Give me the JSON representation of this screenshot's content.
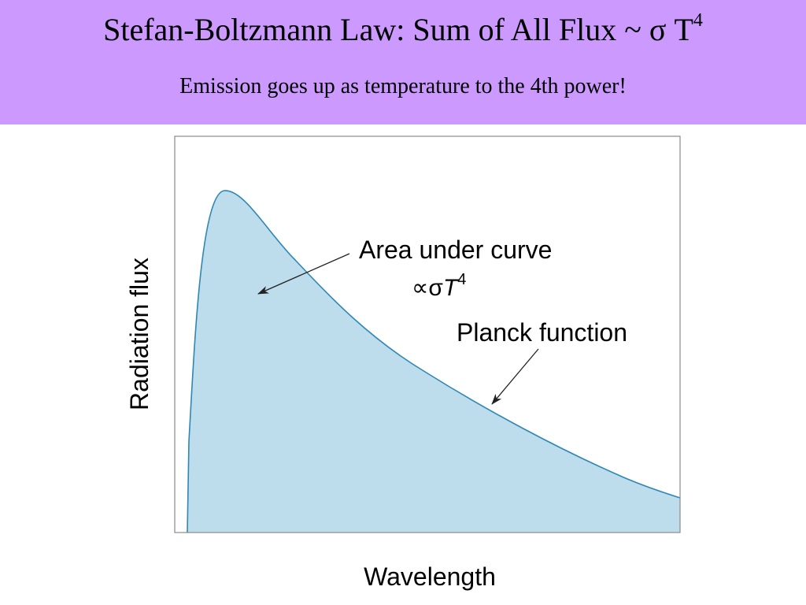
{
  "header": {
    "title_main": "Stefan-Boltzmann Law: Sum of All Flux ~ σ T",
    "title_exponent": "4",
    "subtitle": "Emission goes up as temperature to the 4th power!"
  },
  "figure": {
    "xlabel": "Wavelength",
    "ylabel": "Radiation flux",
    "annotation_area_line1": "Area under curve",
    "annotation_area_symbol": "∝σ",
    "annotation_area_var": "T",
    "annotation_area_exponent": "4",
    "annotation_curve": "Planck function",
    "colors": {
      "banner": "#cc99ff",
      "fill": "#bddcec",
      "curve": "#2f87b3",
      "frame": "#8a8a8a"
    }
  }
}
